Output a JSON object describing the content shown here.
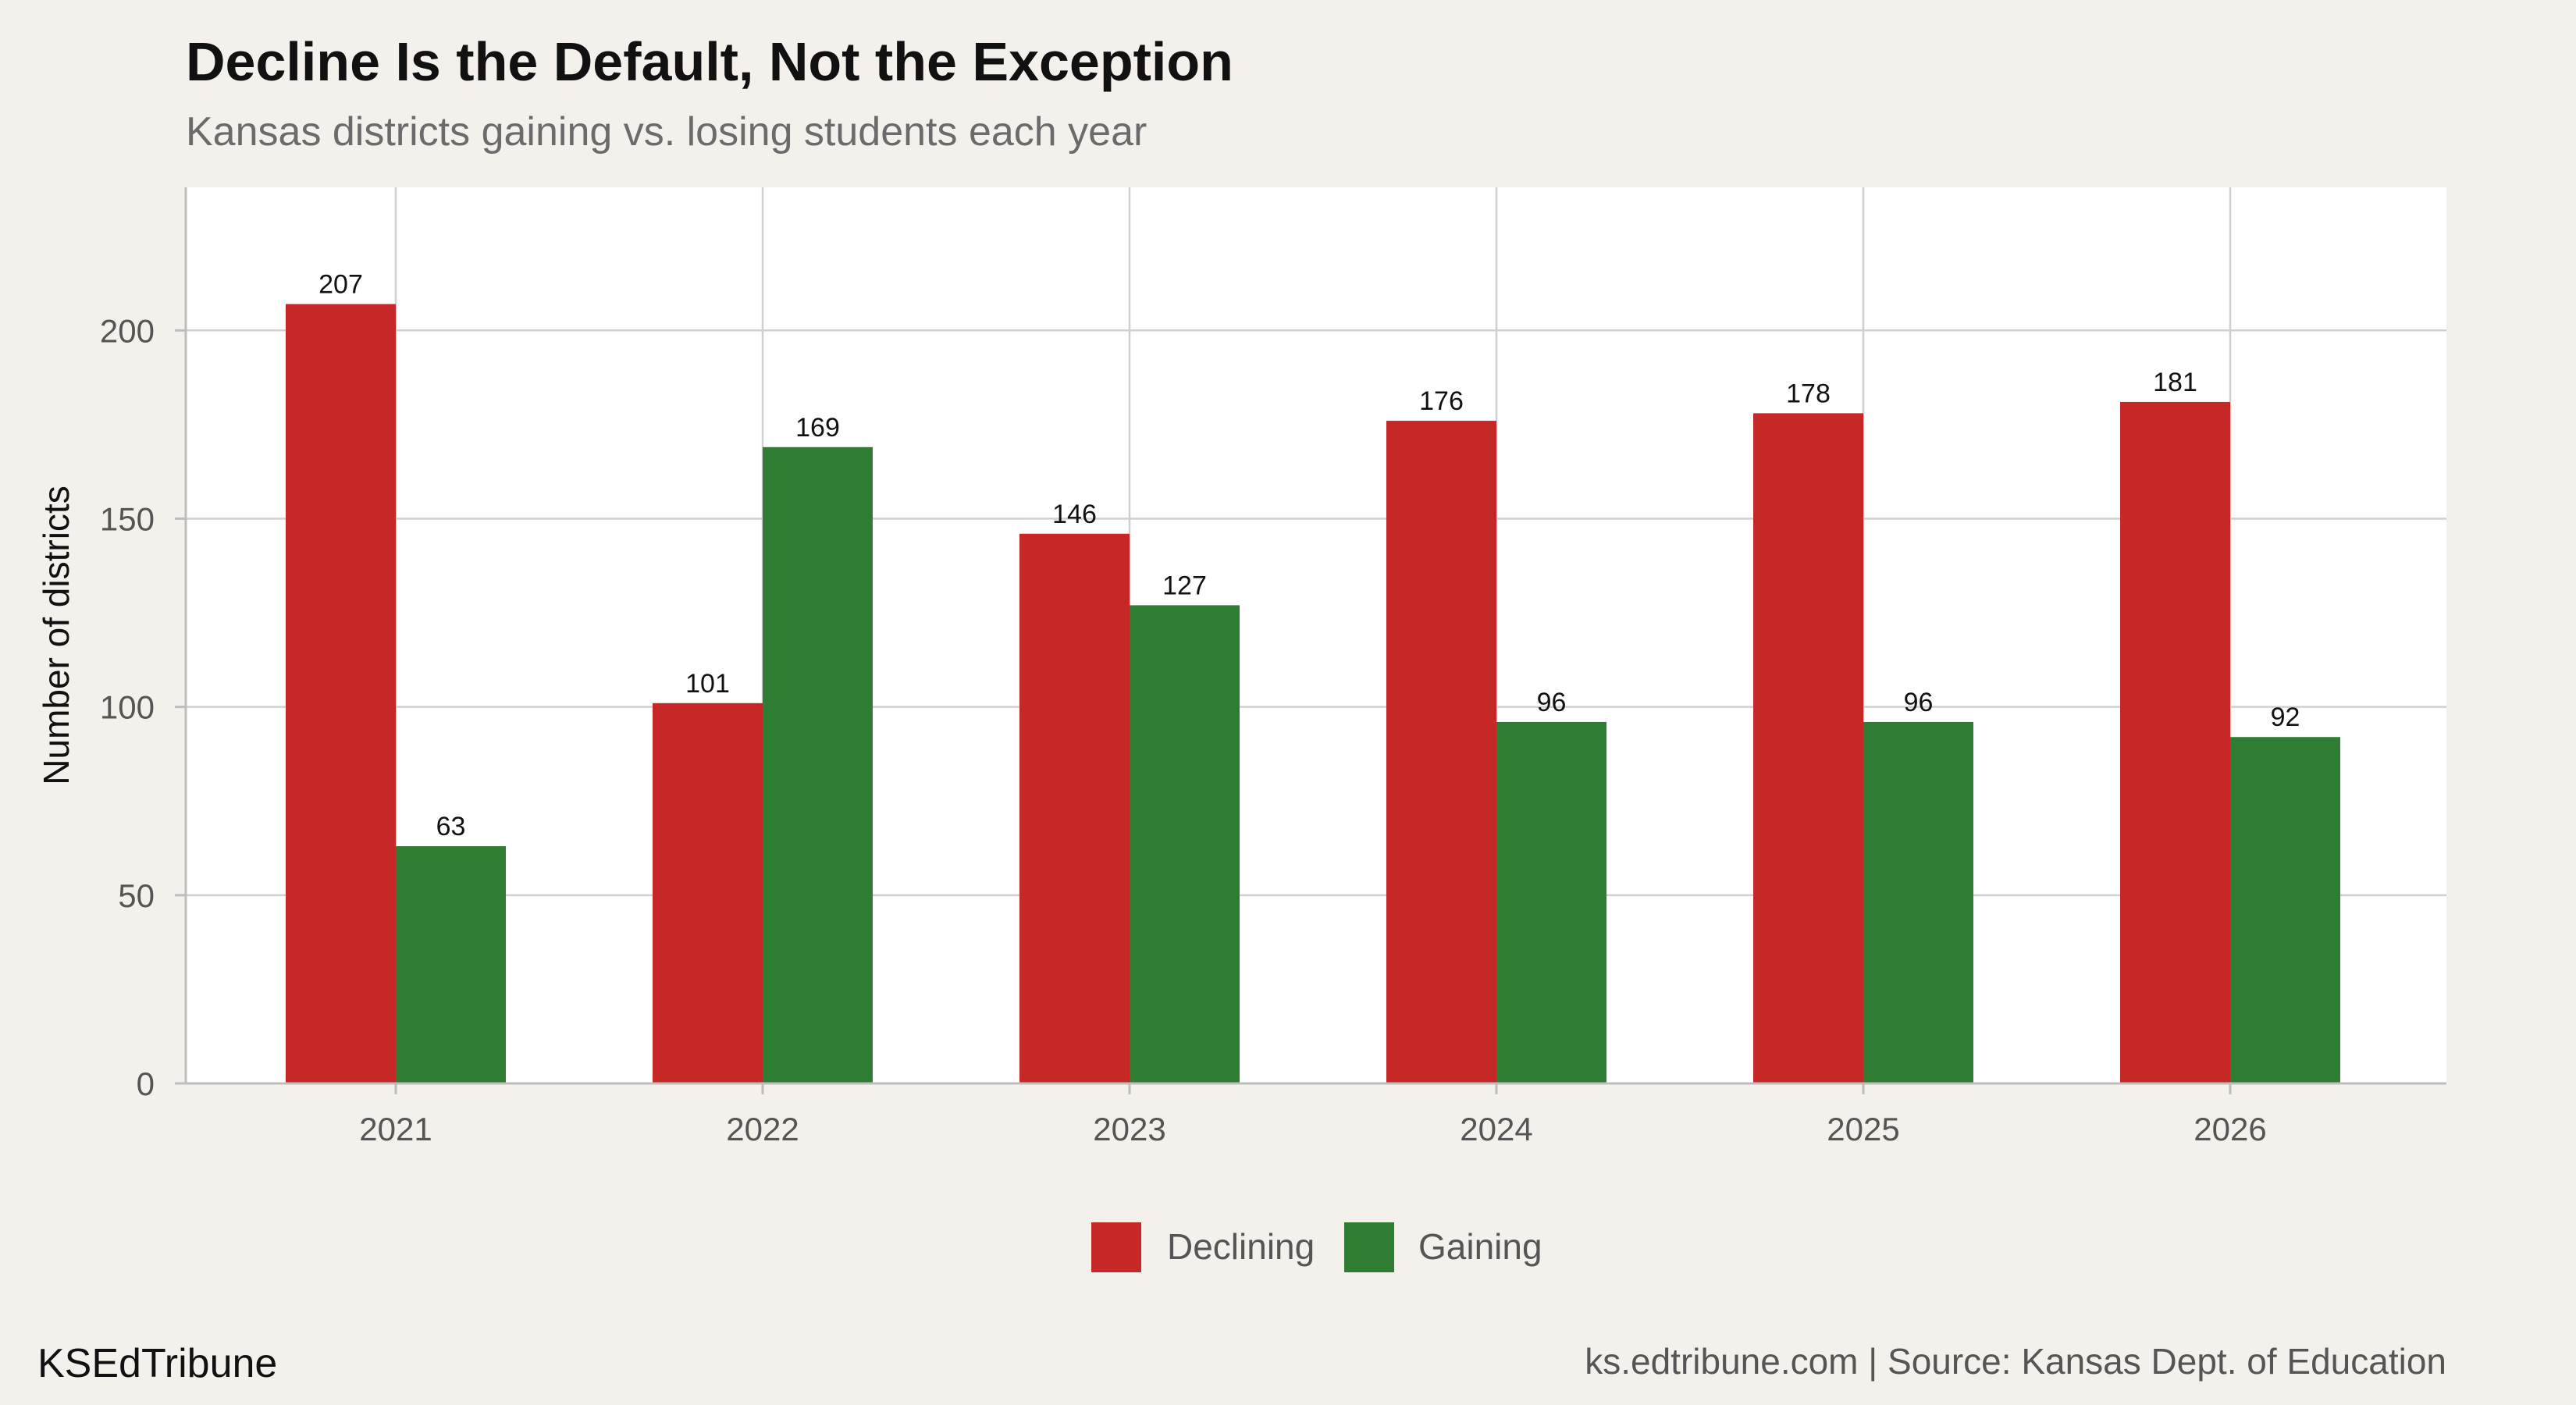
{
  "footer": {
    "brand": "KSEdTribune",
    "source": "ks.edtribune.com | Source: Kansas Dept. of Education"
  },
  "chart_data": {
    "type": "bar",
    "title": "Decline Is the Default, Not the Exception",
    "subtitle": "Kansas districts gaining vs. losing students each year",
    "xlabel": "",
    "ylabel": "Number of districts",
    "categories": [
      "2021",
      "2022",
      "2023",
      "2024",
      "2025",
      "2026"
    ],
    "series": [
      {
        "name": "Declining",
        "color": "#c62828",
        "values": [
          207,
          101,
          146,
          176,
          178,
          181
        ]
      },
      {
        "name": "Gaining",
        "color": "#2e7d32",
        "values": [
          63,
          169,
          127,
          96,
          96,
          92
        ]
      }
    ],
    "ylim": [
      0,
      238
    ],
    "yticks": [
      0,
      50,
      100,
      150,
      200
    ],
    "grid": true,
    "legend": "bottom",
    "data_labels": true
  }
}
